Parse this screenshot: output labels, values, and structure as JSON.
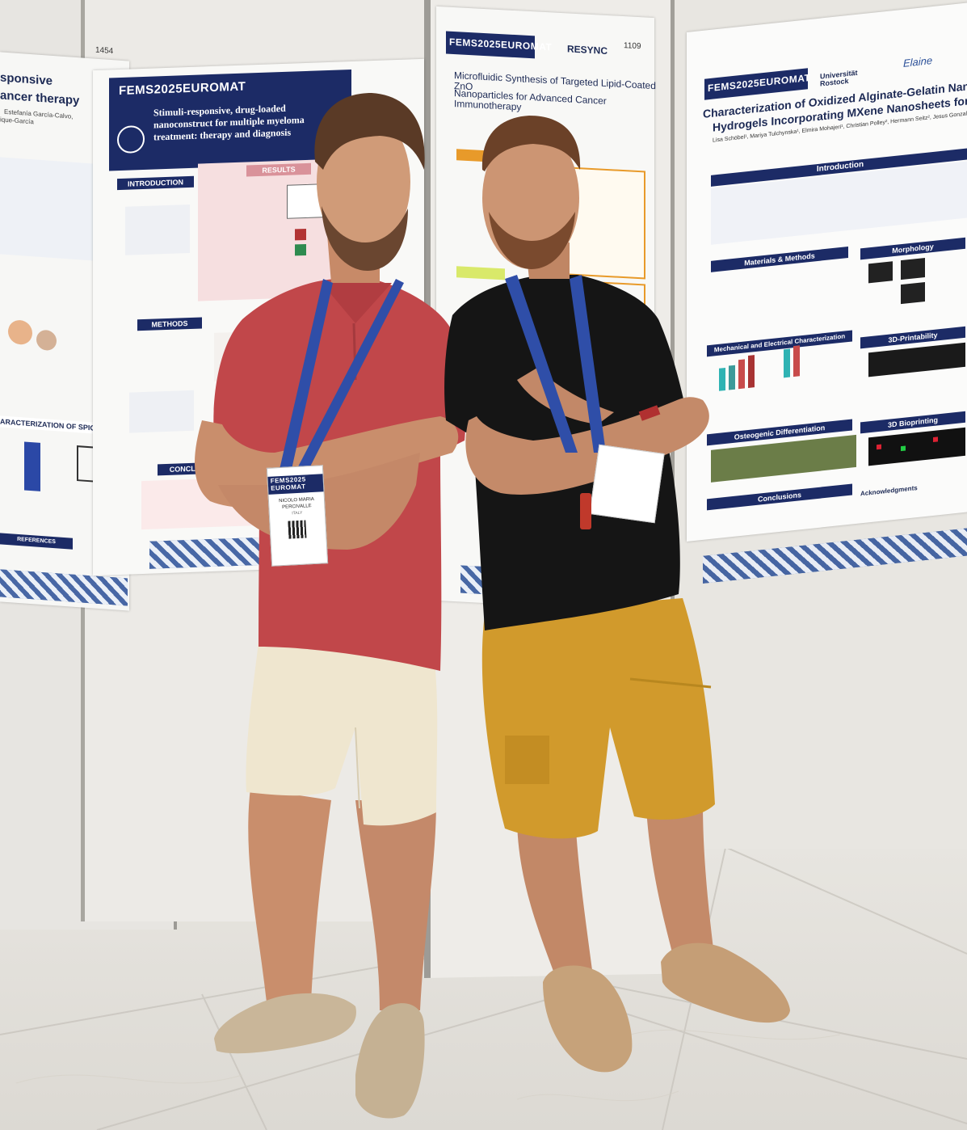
{
  "posters": {
    "far_left": {
      "board_number": "1454",
      "title_lines": [
        "sponsive",
        "ancer therapy"
      ],
      "authors": [
        "Estefanía García-Calvo,",
        "ique-García"
      ],
      "sections": [
        "ARACTERIZATION OF SPIONs",
        "REFERENCES"
      ]
    },
    "middle_left": {
      "conference": "FEMS2025EUROMAT",
      "title": "Stimuli-responsive, drug-loaded nanoconstruct for multiple myeloma treatment: therapy and diagnosis",
      "sections": [
        "INTRODUCTION",
        "RESULTS",
        "METHODS",
        "CONCLUSION"
      ]
    },
    "middle_right": {
      "board_number": "1109",
      "conference": "FEMS2025EUROMAT",
      "title_lines": [
        "Microfluidic Synthesis of Targeted Lipid-Coated ZnO",
        "Nanoparticles for Advanced Cancer Immunotherapy"
      ],
      "sponsor": "RESYNC"
    },
    "right": {
      "conference": "FEMS2025EUROMAT",
      "university": "Universität Rostock",
      "project": "Elaine",
      "title_lines": [
        "Characterization of Oxidized Alginate-Gelatin Nano",
        "Hydrogels Incorporating MXene Nanosheets for 3D"
      ],
      "authors": "Lisa Schöbel¹, Mariya Tulchynska¹, Elmira Mohajeri¹, Christian Polley², Hermann Seitz², Jesus Gonzalez-J",
      "sections": [
        "Introduction",
        "Materials & Methods",
        "Morphology",
        "Mechanical and Electrical Characterization",
        "3D-Printability",
        "Osteogenic Differentiation",
        "3D Bioprinting",
        "Conclusions",
        "Acknowledgments"
      ]
    }
  },
  "badges": {
    "left": {
      "logo": "FEMS2025 EUROMAT",
      "name_line1": "NICOLO MARIA",
      "name_line2": "PERCIVALLE",
      "country": "ITALY"
    },
    "lanyard_text": "FEMS EUROMAT | 2025"
  },
  "colors": {
    "poster_banner": "#1c2b66",
    "red_polo": "#c1474a",
    "black_tshirt": "#151515",
    "mustard_shorts": "#d19a2c",
    "cream_shorts": "#efe6cf",
    "lanyard_blue": "#2f4ea8",
    "marble_floor": "#e6e3de"
  }
}
